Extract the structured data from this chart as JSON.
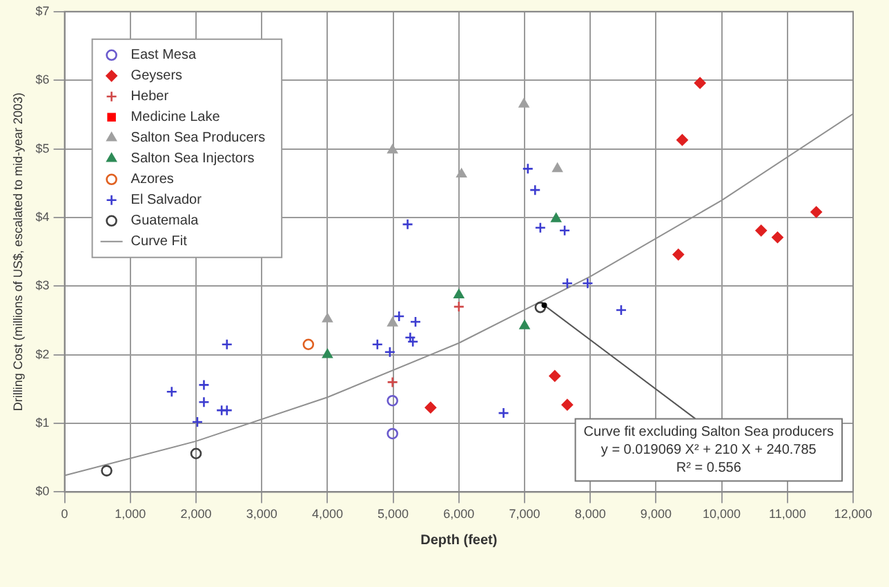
{
  "chart_data": {
    "type": "scatter",
    "xlabel": "Depth (feet)",
    "ylabel": "Drilling Cost (millions of US$, escalated to mid-year 2003)",
    "xlim": [
      0,
      12000
    ],
    "xticks": [
      0,
      {
        "value": 1000,
        "label": "1,000"
      },
      {
        "value": 2000,
        "label": "2,000"
      },
      {
        "value": 3000,
        "label": "3,000"
      },
      {
        "value": 4000,
        "label": "4,000"
      },
      {
        "value": 5000,
        "label": "5,000"
      },
      {
        "value": 6000,
        "label": "6,000"
      },
      {
        "value": 7000,
        "label": "7,000"
      },
      {
        "value": 8000,
        "label": "8,000"
      },
      {
        "value": 9000,
        "label": "9,000"
      },
      {
        "value": 10000,
        "label": "10,000"
      },
      {
        "value": 11000,
        "label": "11,000"
      },
      {
        "value": 12000,
        "label": "12,000"
      }
    ],
    "ylim": [
      0,
      7
    ],
    "yticks": [
      {
        "value": 0,
        "label": "$0"
      },
      {
        "value": 1,
        "label": "$1"
      },
      {
        "value": 2,
        "label": "$2"
      },
      {
        "value": 3,
        "label": "$3"
      },
      {
        "value": 4,
        "label": "$4"
      },
      {
        "value": 5,
        "label": "$5"
      },
      {
        "value": 6,
        "label": "$6"
      },
      {
        "value": 7,
        "label": "$7"
      }
    ],
    "grid": true,
    "legend": "top left",
    "series": [
      {
        "name": "East Mesa",
        "color": "#6a5acd",
        "marker": "circle",
        "x": [
          4990,
          4990
        ],
        "values": [
          1.33,
          0.85
        ]
      },
      {
        "name": "Geysers",
        "color": "#e02020",
        "marker": "diamond",
        "x": [
          9670,
          9400,
          9340,
          10600,
          10850,
          11440,
          7460,
          7650,
          5570
        ],
        "values": [
          5.96,
          5.13,
          3.46,
          3.81,
          3.71,
          4.08,
          1.69,
          1.27,
          1.23
        ]
      },
      {
        "name": "Heber",
        "color": "#d04848",
        "marker": "cross",
        "x": [
          4990,
          6000
        ],
        "values": [
          1.6,
          2.7
        ]
      },
      {
        "name": "Medicine Lake",
        "color": "#ff0000",
        "marker": "square"
      },
      {
        "name": "Salton Sea Producers",
        "color": "#a0a0a0",
        "marker": "triangle",
        "x": [
          4990,
          6040,
          6990,
          7500,
          4000,
          4990
        ],
        "values": [
          4.98,
          4.63,
          5.65,
          4.71,
          2.52,
          2.46
        ]
      },
      {
        "name": "Salton Sea Injectors",
        "color": "#2e8b57",
        "marker": "triangle",
        "x": [
          4000,
          6000,
          7480,
          7000
        ],
        "values": [
          2.0,
          2.87,
          3.98,
          2.42
        ]
      },
      {
        "name": "Azores",
        "color": "#e06020",
        "marker": "circle",
        "x": [
          3710
        ],
        "values": [
          2.15
        ]
      },
      {
        "name": "El Salvador",
        "color": "#3c3cd0",
        "marker": "cross",
        "x": [
          1630,
          2020,
          2120,
          2120,
          2390,
          2470,
          2470,
          4760,
          4950,
          5090,
          5340,
          5260,
          5300,
          5220,
          7050,
          7160,
          7240,
          7610,
          7650,
          7960,
          8470,
          6680
        ],
        "values": [
          1.46,
          1.02,
          1.56,
          1.31,
          1.19,
          1.19,
          2.15,
          2.15,
          2.04,
          2.56,
          2.48,
          2.25,
          2.19,
          3.9,
          4.71,
          4.4,
          3.85,
          3.81,
          3.04,
          3.04,
          2.65,
          1.15
        ]
      },
      {
        "name": "Guatemala",
        "color": "#404040",
        "marker": "circle",
        "x": [
          640,
          2000,
          7240
        ],
        "values": [
          0.31,
          0.56,
          2.69
        ]
      },
      {
        "name": "Curve Fit",
        "type": "line",
        "color": "#909090",
        "marker": "none",
        "x": [
          0,
          2000,
          4000,
          6000,
          8000,
          10000,
          12000
        ],
        "values": [
          0.24,
          0.74,
          1.38,
          2.17,
          3.14,
          4.25,
          5.51
        ]
      }
    ],
    "annotations": [
      {
        "text": "Curve fit excluding Salton Sea producers",
        "x": 7300,
        "y": 2.72
      },
      "y = 0.019069 X² + 210 X + 240.785",
      "R² = 0.556"
    ]
  }
}
